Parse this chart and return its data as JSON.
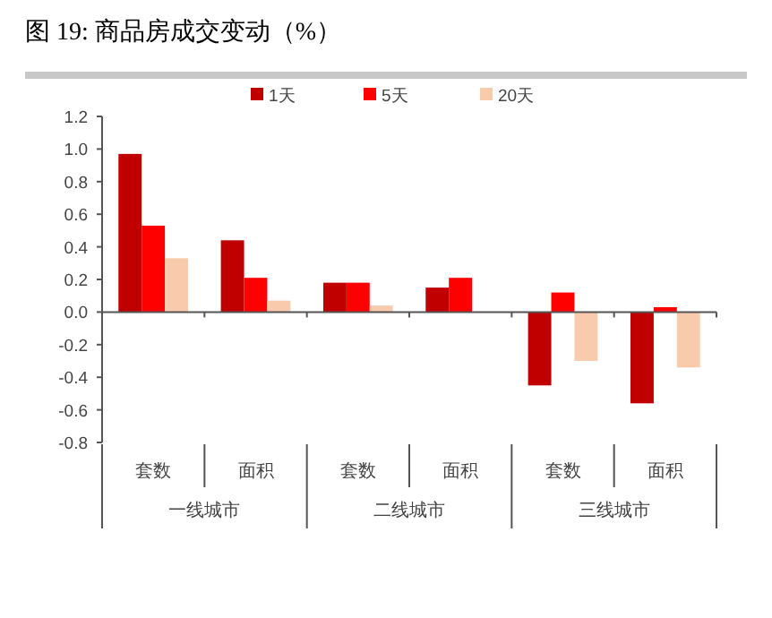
{
  "chart_data": {
    "type": "bar",
    "title": "图 19:     商品房成交变动（%）",
    "categories": [
      "套数",
      "面积",
      "套数",
      "面积",
      "套数",
      "面积"
    ],
    "annotations": [
      "一线城市",
      "二线城市",
      "三线城市"
    ],
    "series": [
      {
        "name": "1天",
        "color": "#c00000",
        "values": [
          0.97,
          0.44,
          0.18,
          0.15,
          -0.45,
          -0.56
        ]
      },
      {
        "name": "5天",
        "color": "#ff0000",
        "values": [
          0.53,
          0.21,
          0.18,
          0.21,
          0.12,
          0.03
        ]
      },
      {
        "name": "20天",
        "color": "#f9cbad",
        "values": [
          0.33,
          0.07,
          0.04,
          0,
          -0.3,
          -0.34
        ]
      }
    ],
    "ylim": [
      -0.8,
      1.2
    ],
    "yticks": [
      {
        "value": -0.8,
        "label": "-0.8"
      },
      {
        "value": -0.6,
        "label": "-0.6"
      },
      {
        "value": -0.4,
        "label": "-0.4"
      },
      {
        "value": -0.2,
        "label": "-0.2"
      },
      {
        "value": 0,
        "label": "0.0"
      },
      {
        "value": 0.2,
        "label": "0.2"
      },
      {
        "value": 0.4,
        "label": "0.4"
      },
      {
        "value": 0.6,
        "label": "0.6"
      },
      {
        "value": 0.8,
        "label": "0.8"
      },
      {
        "value": 1.0,
        "label": "1.0"
      },
      {
        "value": 1.2,
        "label": "1.2"
      }
    ],
    "legend": "top"
  }
}
